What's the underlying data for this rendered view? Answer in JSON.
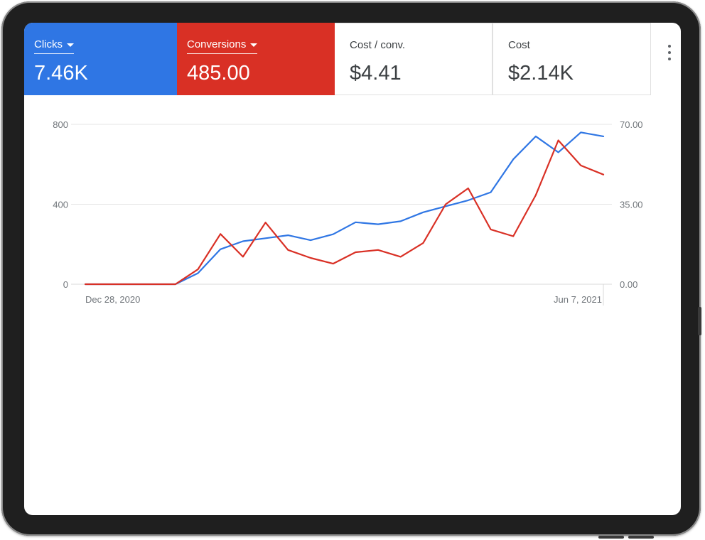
{
  "metrics": {
    "clicks": {
      "label": "Clicks",
      "value": "7.46K"
    },
    "conversions": {
      "label": "Conversions",
      "value": "485.00"
    },
    "cost_per_conv": {
      "label": "Cost / conv.",
      "value": "$4.41"
    },
    "cost": {
      "label": "Cost",
      "value": "$2.14K"
    }
  },
  "colors": {
    "clicks": "#2f76e4",
    "conversions": "#d93025",
    "grid": "#e6e6e6",
    "axis_text": "#70757a"
  },
  "icons": {
    "more": "more-vert-icon",
    "dropdown": "caret-down-icon"
  },
  "chart_data": {
    "type": "line",
    "x_start_label": "Dec 28, 2020",
    "x_end_label": "Jun 7, 2021",
    "left_axis": {
      "ticks": [
        "800",
        "400",
        "0"
      ],
      "range": [
        0,
        800
      ]
    },
    "right_axis": {
      "ticks": [
        "70.00",
        "35.00",
        "0.00"
      ],
      "range": [
        0,
        70
      ]
    },
    "grid": true,
    "series": [
      {
        "name": "Clicks",
        "axis": "left",
        "values": [
          0,
          0,
          0,
          0,
          0,
          55,
          175,
          215,
          230,
          245,
          220,
          250,
          310,
          300,
          315,
          360,
          390,
          420,
          460,
          625,
          740,
          660,
          760,
          740
        ]
      },
      {
        "name": "Conversions",
        "axis": "right",
        "values": [
          0,
          0,
          0,
          0,
          0,
          6.5,
          22,
          12,
          27,
          15,
          11.5,
          9,
          14,
          15,
          12,
          18,
          35,
          42,
          24,
          21,
          39,
          63,
          52,
          48
        ]
      }
    ]
  }
}
